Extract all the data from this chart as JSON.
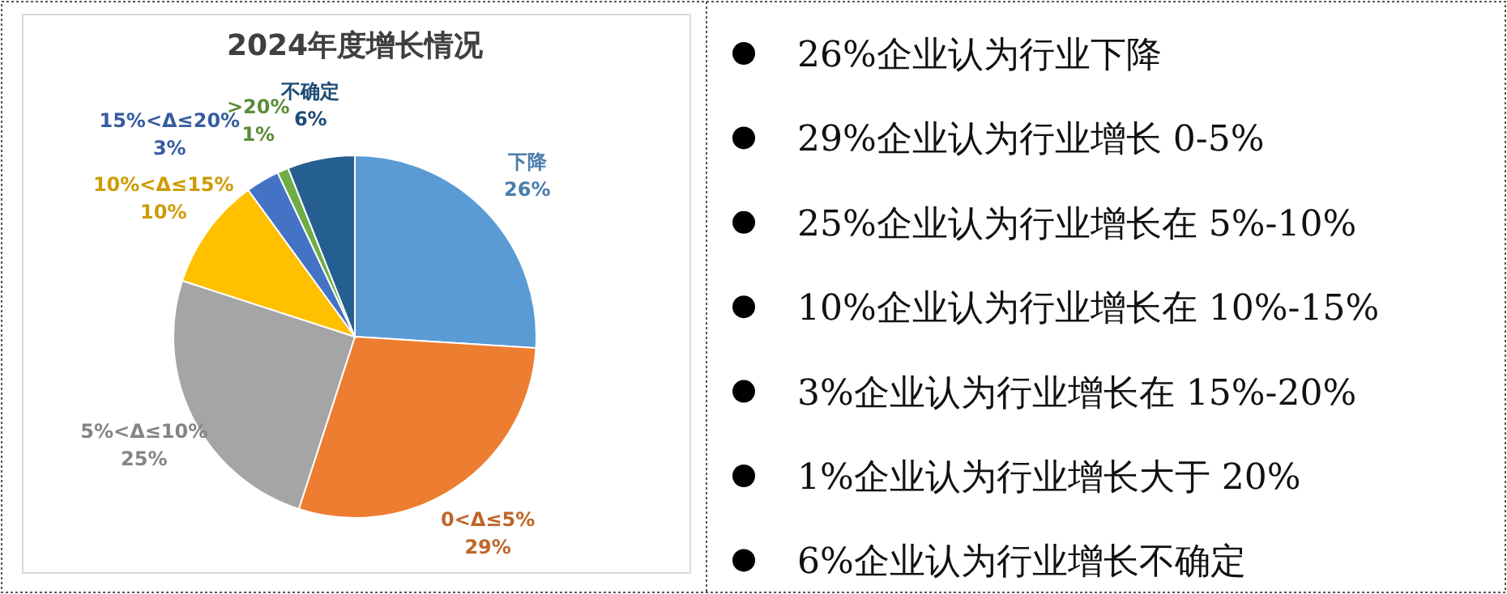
{
  "chart_data": [
    {
      "type": "pie",
      "title": "2024年度增长情况",
      "categories": [
        "下降",
        "0<Δ≤5%",
        "5%<Δ≤10%",
        "10%<Δ≤15%",
        "15%<Δ≤20%",
        ">20%",
        "不确定"
      ],
      "values": [
        26,
        29,
        25,
        10,
        3,
        1,
        6
      ],
      "value_labels": [
        "26%",
        "29%",
        "25%",
        "10%",
        "3%",
        "1%",
        "6%"
      ],
      "colors": [
        "#5b9bd5",
        "#ed7d31",
        "#a5a5a5",
        "#ffc000",
        "#4472c4",
        "#70ad47",
        "#255e91"
      ],
      "legend": false
    },
    {
      "type": "other",
      "annotations": [
        "26%企业认为行业下降",
        "29%企业认为行业增长 0-5%",
        "25%企业认为行业增长在 5%-10%",
        "10%企业认为行业增长在 10%-15%",
        "3%企业认为行业增长在 15%-20%",
        "1%企业认为行业增长大于 20%",
        "6%企业认为行业增长不确定"
      ]
    }
  ]
}
